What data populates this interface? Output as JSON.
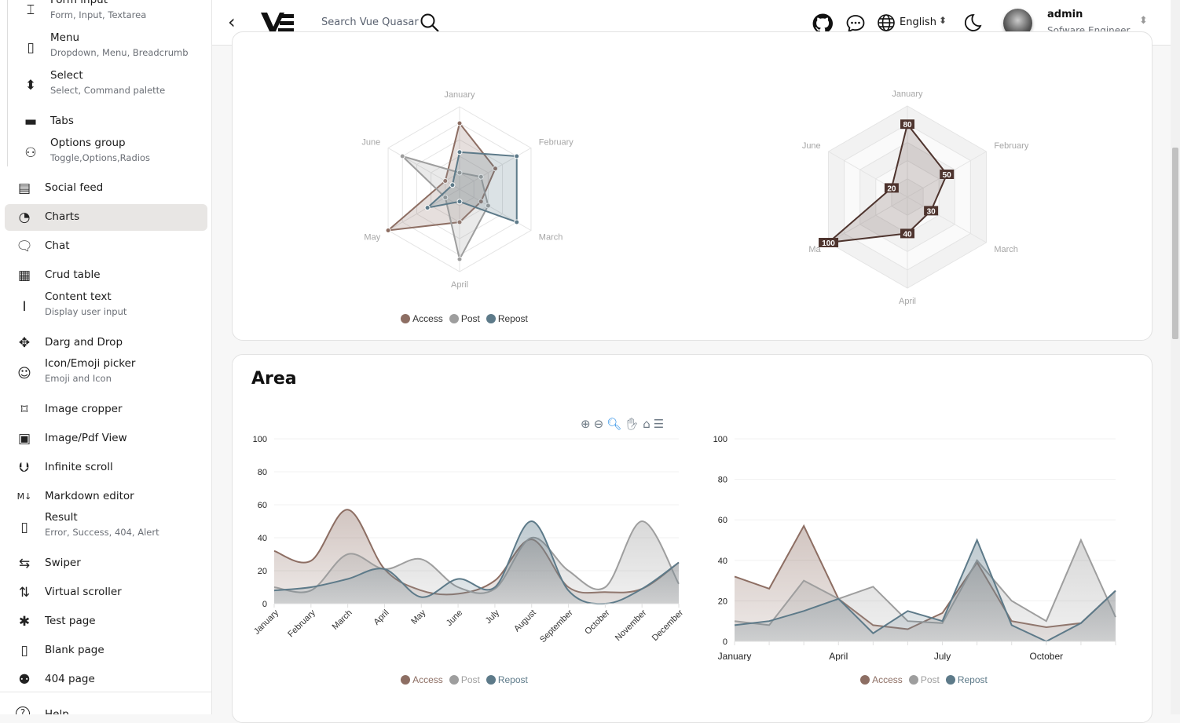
{
  "header": {
    "search_placeholder": "Search Vue Quasar",
    "language": "English",
    "user_name": "admin",
    "user_role": "Sofware Engineer"
  },
  "sidebar": {
    "items": [
      {
        "label": "Form input",
        "sub": "Form, Input, Textarea",
        "icon": "form-input-icon"
      },
      {
        "label": "Menu",
        "sub": "Dropdown, Menu, Breadcrumb",
        "icon": "menu-icon"
      },
      {
        "label": "Select",
        "sub": "Select, Command palette",
        "icon": "select-icon"
      },
      {
        "label": "Tabs",
        "icon": "tabs-icon"
      },
      {
        "label": "Options group",
        "sub": "Toggle,Options,Radios",
        "icon": "options-icon"
      },
      {
        "label": "Social feed",
        "icon": "feed-icon"
      },
      {
        "label": "Charts",
        "icon": "chart-pie-icon",
        "active": true
      },
      {
        "label": "Chat",
        "icon": "chat-icon"
      },
      {
        "label": "Crud table",
        "icon": "table-icon"
      },
      {
        "label": "Content text",
        "sub": "Display user input",
        "icon": "text-cursor-icon"
      },
      {
        "label": "Darg and Drop",
        "icon": "move-icon"
      },
      {
        "label": "Icon/Emoji picker",
        "sub": "Emoji and Icon",
        "icon": "emoji-icon"
      },
      {
        "label": "Image cropper",
        "icon": "crop-icon"
      },
      {
        "label": "Image/Pdf View",
        "icon": "image-icon"
      },
      {
        "label": "Infinite scroll",
        "icon": "arrow-down-circle-icon"
      },
      {
        "label": "Markdown editor",
        "icon": "markdown-icon"
      },
      {
        "label": "Result",
        "sub": "Error, Success, 404, Alert",
        "icon": "result-icon"
      },
      {
        "label": "Swiper",
        "icon": "swap-icon"
      },
      {
        "label": "Virtual scroller",
        "icon": "sort-icon"
      },
      {
        "label": "Test page",
        "icon": "bug-icon"
      },
      {
        "label": "Blank page",
        "icon": "blank-page-icon"
      },
      {
        "label": "404 page",
        "icon": "robot-icon"
      },
      {
        "label": "Help",
        "icon": "help-icon"
      }
    ]
  },
  "colors": {
    "access": "#8d6e63",
    "post": "#9e9e9e",
    "repost": "#5d7a89"
  },
  "legend": [
    "Access",
    "Post",
    "Repost"
  ],
  "area_section": {
    "title": "Area"
  },
  "chart_data": [
    {
      "type": "radar",
      "indicators": [
        "January",
        "February",
        "March",
        "April",
        "May",
        "June"
      ],
      "max": 100,
      "series": [
        {
          "name": "Access",
          "values": [
            80,
            50,
            30,
            40,
            100,
            20
          ]
        },
        {
          "name": "Post",
          "values": [
            20,
            30,
            40,
            85,
            20,
            80
          ]
        },
        {
          "name": "Repost",
          "values": [
            45,
            80,
            80,
            15,
            45,
            10
          ]
        }
      ],
      "legend_position": "bottom"
    },
    {
      "type": "radar",
      "indicators": [
        "January",
        "February",
        "March",
        "April",
        "Ma",
        "June"
      ],
      "max": 100,
      "series": [
        {
          "name": "Access",
          "values": [
            80,
            50,
            30,
            40,
            100,
            20
          ],
          "data_labels": true
        }
      ],
      "legend_position": "none"
    },
    {
      "type": "area",
      "smooth": true,
      "categories": [
        "January",
        "February",
        "March",
        "April",
        "May",
        "June",
        "July",
        "August",
        "September",
        "October",
        "November",
        "December"
      ],
      "ylim": [
        0,
        100
      ],
      "yticks": [
        0,
        20,
        40,
        60,
        80,
        100
      ],
      "series": [
        {
          "name": "Access",
          "values": [
            32,
            26,
            57,
            21,
            8,
            6,
            14,
            39,
            10,
            7,
            9,
            25
          ]
        },
        {
          "name": "Post",
          "values": [
            10,
            8,
            30,
            21,
            27,
            10,
            9,
            40,
            20,
            10,
            50,
            12
          ]
        },
        {
          "name": "Repost",
          "values": [
            8,
            10,
            15,
            21,
            4,
            15,
            10,
            50,
            8,
            0,
            9,
            25
          ]
        }
      ],
      "legend_position": "bottom",
      "grid": true
    },
    {
      "type": "area",
      "smooth": false,
      "categories": [
        "January",
        "February",
        "March",
        "April",
        "May",
        "June",
        "July",
        "August",
        "September",
        "October",
        "November",
        "December"
      ],
      "xtick_labels": [
        "January",
        "April",
        "July",
        "October"
      ],
      "ylim": [
        0,
        100
      ],
      "yticks": [
        0,
        20,
        40,
        60,
        80,
        100
      ],
      "series": [
        {
          "name": "Access",
          "values": [
            32,
            26,
            57,
            21,
            8,
            6,
            14,
            39,
            10,
            7,
            9,
            25
          ]
        },
        {
          "name": "Post",
          "values": [
            10,
            8,
            30,
            21,
            27,
            10,
            9,
            40,
            20,
            10,
            50,
            12
          ]
        },
        {
          "name": "Repost",
          "values": [
            8,
            10,
            15,
            21,
            4,
            15,
            10,
            50,
            8,
            0,
            9,
            25
          ]
        }
      ],
      "legend_position": "bottom",
      "grid": true
    }
  ]
}
